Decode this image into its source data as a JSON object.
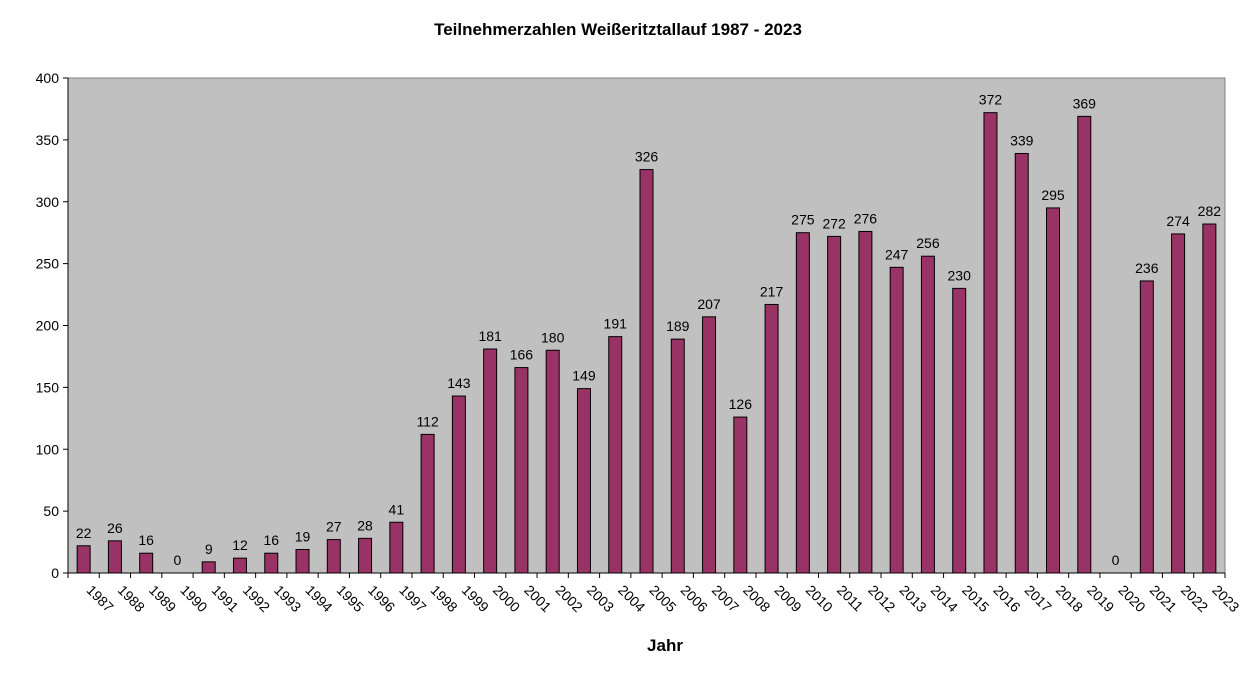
{
  "chart_data": {
    "type": "bar",
    "title": "Teilnehmerzahlen Weißeritztallauf 1987 - 2023",
    "xlabel": "Jahr",
    "ylabel": "",
    "ylim": [
      0,
      400
    ],
    "yticks": [
      0,
      50,
      100,
      150,
      200,
      250,
      300,
      350,
      400
    ],
    "grid": false,
    "legend": "none",
    "colors": {
      "bar": "#993366",
      "plot_bg": "#C0C0C0",
      "axis": "#000000"
    },
    "categories": [
      "1987",
      "1988",
      "1989",
      "1990",
      "1991",
      "1992",
      "1993",
      "1994",
      "1995",
      "1996",
      "1997",
      "1998",
      "1999",
      "2000",
      "2001",
      "2002",
      "2003",
      "2004",
      "2005",
      "2006",
      "2007",
      "2008",
      "2009",
      "2010",
      "2011",
      "2012",
      "2013",
      "2014",
      "2015",
      "2016",
      "2017",
      "2018",
      "2019",
      "2020",
      "2021",
      "2022",
      "2023"
    ],
    "values": [
      22,
      26,
      16,
      0,
      9,
      12,
      16,
      19,
      27,
      28,
      41,
      112,
      143,
      181,
      166,
      180,
      149,
      191,
      326,
      189,
      207,
      126,
      217,
      275,
      272,
      276,
      247,
      256,
      230,
      372,
      339,
      295,
      369,
      0,
      236,
      274,
      282
    ]
  }
}
